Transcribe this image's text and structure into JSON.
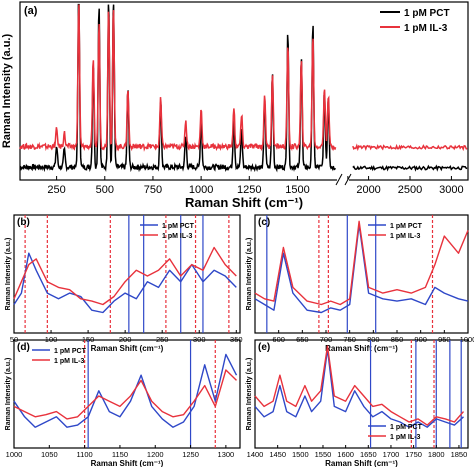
{
  "colors": {
    "pct": "#000000",
    "il3": "#e8323c",
    "pct_small": "#2f48c8",
    "il3_small": "#e8323c",
    "ref_solid": "#2f48c8",
    "ref_dashed": "#e8323c",
    "arrow": "#3a8cd0"
  },
  "chart_data": [
    {
      "panel": "(a)",
      "type": "line",
      "xlabel": "Raman Shift (cm⁻¹)",
      "ylabel": "Raman Intensity (a.u.)",
      "axis_break": [
        1700,
        1800
      ],
      "xticks": [
        250,
        500,
        750,
        1000,
        1250,
        1500,
        1750,
        2000,
        2500,
        3000
      ],
      "xtick_labels": [
        "250",
        "500",
        "750",
        "1000",
        "1250",
        "1500",
        "",
        "2000",
        "2500",
        "3000"
      ],
      "legend": [
        "1 pM PCT",
        "1 pM IL-3"
      ],
      "legend_position": "top-right",
      "series": [
        {
          "name": "1 pM PCT",
          "color": "pct",
          "peaks": [
            [
              250,
              0.12
            ],
            [
              290,
              0.1
            ],
            [
              365,
              1.05
            ],
            [
              440,
              0.6
            ],
            [
              470,
              0.95
            ],
            [
              520,
              1.0
            ],
            [
              545,
              1.0
            ],
            [
              620,
              0.45
            ],
            [
              790,
              0.4
            ],
            [
              920,
              0.18
            ],
            [
              1000,
              0.28
            ],
            [
              1170,
              0.28
            ],
            [
              1210,
              0.22
            ],
            [
              1330,
              0.4
            ],
            [
              1370,
              0.55
            ],
            [
              1450,
              0.8
            ],
            [
              1520,
              0.65
            ],
            [
              1580,
              0.85
            ],
            [
              1640,
              0.45
            ],
            [
              1660,
              0.4
            ]
          ],
          "baseline": 0.06
        },
        {
          "name": "1 pM IL-3",
          "color": "il3",
          "peaks": [
            [
              250,
              0.1
            ],
            [
              290,
              0.08
            ],
            [
              365,
              0.85
            ],
            [
              440,
              0.5
            ],
            [
              470,
              0.72
            ],
            [
              520,
              0.82
            ],
            [
              545,
              0.82
            ],
            [
              620,
              0.33
            ],
            [
              790,
              0.28
            ],
            [
              920,
              0.15
            ],
            [
              1000,
              0.22
            ],
            [
              1170,
              0.22
            ],
            [
              1210,
              0.18
            ],
            [
              1330,
              0.3
            ],
            [
              1370,
              0.42
            ],
            [
              1450,
              0.6
            ],
            [
              1520,
              0.5
            ],
            [
              1580,
              0.65
            ],
            [
              1640,
              0.35
            ],
            [
              1660,
              0.3
            ]
          ],
          "baseline": 0.18
        }
      ]
    },
    {
      "panel": "(b)",
      "type": "line",
      "xlabel": "Raman Shift (cm⁻¹)",
      "ylabel": "Raman Intensity (a.u.)",
      "xlim": [
        50,
        355
      ],
      "xticks": [
        50,
        100,
        150,
        200,
        250,
        300,
        350
      ],
      "legend": [
        "1 pM PCT",
        "1 pM IL-3"
      ],
      "solid_lines": [
        205,
        225,
        275,
        305
      ],
      "dashed_lines": [
        65,
        95,
        180,
        255,
        295,
        340
      ],
      "series": [
        {
          "name": "1 pM PCT",
          "color": "pct_small",
          "points": [
            [
              50,
              0.25
            ],
            [
              60,
              0.35
            ],
            [
              70,
              0.7
            ],
            [
              80,
              0.55
            ],
            [
              95,
              0.35
            ],
            [
              110,
              0.3
            ],
            [
              125,
              0.35
            ],
            [
              140,
              0.32
            ],
            [
              155,
              0.2
            ],
            [
              170,
              0.18
            ],
            [
              185,
              0.28
            ],
            [
              200,
              0.35
            ],
            [
              215,
              0.3
            ],
            [
              230,
              0.45
            ],
            [
              245,
              0.4
            ],
            [
              260,
              0.55
            ],
            [
              275,
              0.45
            ],
            [
              290,
              0.6
            ],
            [
              305,
              0.45
            ],
            [
              320,
              0.55
            ],
            [
              335,
              0.5
            ],
            [
              350,
              0.4
            ]
          ]
        },
        {
          "name": "1 pM IL-3",
          "color": "il3_small",
          "points": [
            [
              50,
              0.3
            ],
            [
              60,
              0.45
            ],
            [
              70,
              0.6
            ],
            [
              80,
              0.65
            ],
            [
              95,
              0.45
            ],
            [
              110,
              0.4
            ],
            [
              125,
              0.38
            ],
            [
              140,
              0.3
            ],
            [
              155,
              0.28
            ],
            [
              170,
              0.25
            ],
            [
              185,
              0.32
            ],
            [
              200,
              0.45
            ],
            [
              215,
              0.55
            ],
            [
              230,
              0.5
            ],
            [
              245,
              0.55
            ],
            [
              260,
              0.65
            ],
            [
              275,
              0.5
            ],
            [
              290,
              0.6
            ],
            [
              305,
              0.55
            ],
            [
              320,
              0.75
            ],
            [
              335,
              0.6
            ],
            [
              350,
              0.5
            ]
          ]
        }
      ]
    },
    {
      "panel": "(c)",
      "type": "line",
      "xlabel": "Raman Shift (cm⁻¹)",
      "ylabel": "Raman Intensity (a.u.)",
      "xlim": [
        550,
        1000
      ],
      "xticks": [
        600,
        650,
        700,
        750,
        800,
        850,
        900,
        950,
        1000
      ],
      "legend": [
        "1 pM PCT",
        "1 pM IL-3"
      ],
      "solid_lines": [
        575,
        745,
        805
      ],
      "dashed_lines": [
        685,
        705,
        925
      ],
      "series": [
        {
          "name": "1 pM PCT",
          "color": "pct_small",
          "points": [
            [
              550,
              0.3
            ],
            [
              570,
              0.25
            ],
            [
              590,
              0.2
            ],
            [
              610,
              0.7
            ],
            [
              630,
              0.35
            ],
            [
              660,
              0.2
            ],
            [
              690,
              0.18
            ],
            [
              710,
              0.22
            ],
            [
              730,
              0.2
            ],
            [
              750,
              0.25
            ],
            [
              770,
              0.95
            ],
            [
              790,
              0.35
            ],
            [
              820,
              0.3
            ],
            [
              850,
              0.28
            ],
            [
              880,
              0.3
            ],
            [
              910,
              0.25
            ],
            [
              930,
              0.4
            ],
            [
              950,
              0.35
            ],
            [
              980,
              0.3
            ],
            [
              1000,
              0.28
            ]
          ]
        },
        {
          "name": "1 pM IL-3",
          "color": "il3_small",
          "points": [
            [
              550,
              0.35
            ],
            [
              570,
              0.3
            ],
            [
              590,
              0.28
            ],
            [
              610,
              0.75
            ],
            [
              630,
              0.4
            ],
            [
              660,
              0.28
            ],
            [
              690,
              0.25
            ],
            [
              710,
              0.28
            ],
            [
              730,
              0.25
            ],
            [
              750,
              0.3
            ],
            [
              770,
              0.98
            ],
            [
              790,
              0.4
            ],
            [
              820,
              0.35
            ],
            [
              850,
              0.38
            ],
            [
              880,
              0.35
            ],
            [
              910,
              0.4
            ],
            [
              930,
              0.6
            ],
            [
              950,
              0.85
            ],
            [
              980,
              0.7
            ],
            [
              1000,
              0.9
            ]
          ]
        }
      ]
    },
    {
      "panel": "(d)",
      "type": "line",
      "xlabel": "Raman Shift (cm⁻¹)",
      "ylabel": "Raman Intensity (a.u.)",
      "xlim": [
        1000,
        1320
      ],
      "xticks": [
        1000,
        1050,
        1100,
        1150,
        1200,
        1250,
        1300
      ],
      "legend": [
        "1 pM PCT",
        "1 pM IL-3"
      ],
      "solid_lines": [
        1105,
        1250
      ],
      "dashed_lines": [
        1100,
        1285
      ],
      "series": [
        {
          "name": "1 pM PCT",
          "color": "pct_small",
          "points": [
            [
              1000,
              0.45
            ],
            [
              1015,
              0.3
            ],
            [
              1030,
              0.2
            ],
            [
              1045,
              0.25
            ],
            [
              1060,
              0.3
            ],
            [
              1075,
              0.2
            ],
            [
              1090,
              0.22
            ],
            [
              1105,
              0.3
            ],
            [
              1120,
              0.55
            ],
            [
              1135,
              0.35
            ],
            [
              1150,
              0.3
            ],
            [
              1165,
              0.45
            ],
            [
              1180,
              0.7
            ],
            [
              1195,
              0.4
            ],
            [
              1210,
              0.28
            ],
            [
              1225,
              0.2
            ],
            [
              1240,
              0.25
            ],
            [
              1255,
              0.4
            ],
            [
              1270,
              0.8
            ],
            [
              1285,
              0.45
            ],
            [
              1300,
              0.9
            ],
            [
              1315,
              0.7
            ]
          ]
        },
        {
          "name": "1 pM IL-3",
          "color": "il3_small",
          "points": [
            [
              1000,
              0.4
            ],
            [
              1015,
              0.35
            ],
            [
              1030,
              0.3
            ],
            [
              1045,
              0.32
            ],
            [
              1060,
              0.35
            ],
            [
              1075,
              0.28
            ],
            [
              1090,
              0.3
            ],
            [
              1105,
              0.4
            ],
            [
              1120,
              0.5
            ],
            [
              1135,
              0.45
            ],
            [
              1150,
              0.4
            ],
            [
              1165,
              0.5
            ],
            [
              1180,
              0.65
            ],
            [
              1195,
              0.45
            ],
            [
              1210,
              0.35
            ],
            [
              1225,
              0.3
            ],
            [
              1240,
              0.32
            ],
            [
              1255,
              0.45
            ],
            [
              1270,
              0.6
            ],
            [
              1285,
              0.4
            ],
            [
              1300,
              0.75
            ],
            [
              1315,
              0.65
            ]
          ]
        }
      ]
    },
    {
      "panel": "(e)",
      "type": "line",
      "xlabel": "Raman Shift (cm⁻¹)",
      "ylabel": "Raman Intensity (a.u.)",
      "xlim": [
        1400,
        1870
      ],
      "xticks": [
        1400,
        1450,
        1500,
        1550,
        1600,
        1650,
        1700,
        1750,
        1800,
        1850
      ],
      "legend": [
        "1 pM PCT",
        "1 pM IL-3"
      ],
      "solid_lines": [
        1655,
        1755,
        1800,
        1830,
        1855
      ],
      "dashed_lines": [
        1745,
        1795
      ],
      "series": [
        {
          "name": "1 pM PCT",
          "color": "pct_small",
          "points": [
            [
              1400,
              0.4
            ],
            [
              1420,
              0.3
            ],
            [
              1440,
              0.35
            ],
            [
              1455,
              0.6
            ],
            [
              1470,
              0.35
            ],
            [
              1490,
              0.3
            ],
            [
              1510,
              0.5
            ],
            [
              1525,
              0.35
            ],
            [
              1545,
              0.45
            ],
            [
              1560,
              0.95
            ],
            [
              1575,
              0.4
            ],
            [
              1600,
              0.35
            ],
            [
              1620,
              0.55
            ],
            [
              1640,
              0.4
            ],
            [
              1660,
              0.3
            ],
            [
              1680,
              0.35
            ],
            [
              1700,
              0.28
            ],
            [
              1720,
              0.25
            ],
            [
              1740,
              0.2
            ],
            [
              1760,
              0.25
            ],
            [
              1780,
              0.2
            ],
            [
              1800,
              0.28
            ],
            [
              1820,
              0.25
            ],
            [
              1840,
              0.22
            ],
            [
              1860,
              0.3
            ]
          ]
        },
        {
          "name": "1 pM IL-3",
          "color": "il3_small",
          "points": [
            [
              1400,
              0.5
            ],
            [
              1420,
              0.4
            ],
            [
              1440,
              0.45
            ],
            [
              1455,
              0.7
            ],
            [
              1470,
              0.45
            ],
            [
              1490,
              0.4
            ],
            [
              1510,
              0.6
            ],
            [
              1525,
              0.45
            ],
            [
              1545,
              0.55
            ],
            [
              1560,
              0.98
            ],
            [
              1575,
              0.5
            ],
            [
              1600,
              0.45
            ],
            [
              1620,
              0.6
            ],
            [
              1640,
              0.5
            ],
            [
              1660,
              0.4
            ],
            [
              1680,
              0.42
            ],
            [
              1700,
              0.35
            ],
            [
              1720,
              0.3
            ],
            [
              1740,
              0.25
            ],
            [
              1760,
              0.28
            ],
            [
              1780,
              0.22
            ],
            [
              1800,
              0.3
            ],
            [
              1820,
              0.28
            ],
            [
              1840,
              0.25
            ],
            [
              1860,
              0.35
            ]
          ]
        }
      ]
    }
  ]
}
